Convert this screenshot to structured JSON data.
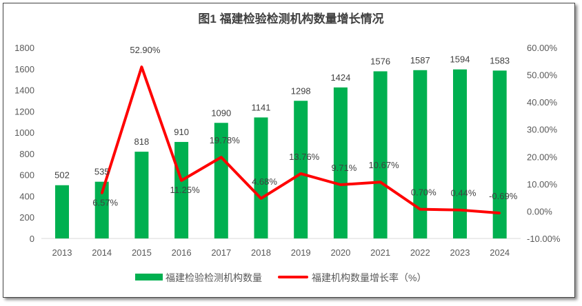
{
  "chart_data": {
    "type": "bar+line",
    "title": "图1 福建检验检测机构数量增长情况",
    "categories": [
      "2013",
      "2014",
      "2015",
      "2016",
      "2017",
      "2018",
      "2019",
      "2020",
      "2021",
      "2022",
      "2023",
      "2024"
    ],
    "series": [
      {
        "name": "福建检验检测机构数量",
        "type": "bar",
        "axis": "left",
        "color": "#00B050",
        "values": [
          502,
          535,
          818,
          910,
          1090,
          1141,
          1298,
          1424,
          1576,
          1587,
          1594,
          1583
        ],
        "labels": [
          "502",
          "535",
          "818",
          "910",
          "1090",
          "1141",
          "1298",
          "1424",
          "1576",
          "1587",
          "1594",
          "1583"
        ]
      },
      {
        "name": "福建机构数量增长率（%）",
        "type": "line",
        "axis": "right",
        "color": "#FF0000",
        "values": [
          null,
          6.57,
          52.9,
          11.25,
          19.78,
          4.68,
          13.76,
          9.71,
          10.67,
          0.7,
          0.44,
          -0.69
        ],
        "labels": [
          "",
          "6.57%",
          "52.90%",
          "11.25%",
          "19.78%",
          "4.68%",
          "13.76%",
          "9.71%",
          "10.67%",
          "0.70%",
          "0.44%",
          "-0.69%"
        ]
      }
    ],
    "y_left": {
      "min": 0,
      "max": 1800,
      "step": 200,
      "ticks": [
        "0",
        "200",
        "400",
        "600",
        "800",
        "1000",
        "1200",
        "1400",
        "1600",
        "1800"
      ]
    },
    "y_right": {
      "min": -10,
      "max": 60,
      "step": 10,
      "ticks": [
        "-10.00%",
        "0.00%",
        "10.00%",
        "20.00%",
        "30.00%",
        "40.00%",
        "50.00%",
        "60.00%"
      ]
    },
    "grid": false,
    "legend": "bottom"
  }
}
